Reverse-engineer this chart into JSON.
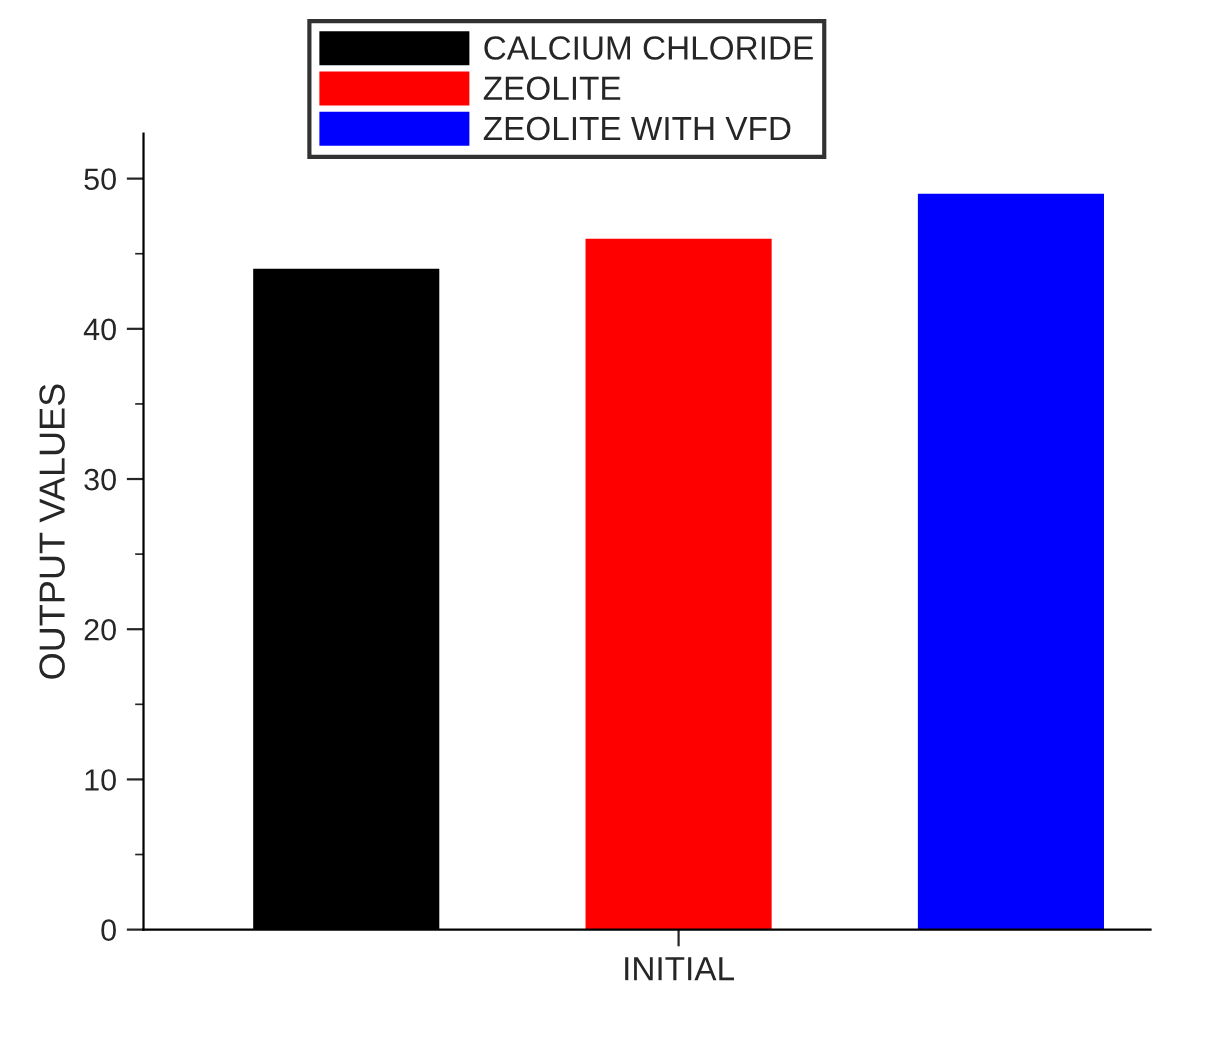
{
  "chart_data": {
    "type": "bar",
    "categories": [
      "INITIAL"
    ],
    "xlabel": null,
    "ylabel": "OUTPUT VALUES",
    "series": [
      {
        "name": "CALCIUM CHLORIDE",
        "color": "#000000",
        "values": [
          44
        ]
      },
      {
        "name": "ZEOLITE",
        "color": "#ff0000",
        "values": [
          46
        ]
      },
      {
        "name": "ZEOLITE WITH VFD",
        "color": "#0000ff",
        "values": [
          49
        ]
      }
    ],
    "ylim": [
      0,
      53
    ],
    "yticks": [
      0,
      10,
      20,
      30,
      40,
      50
    ],
    "grid": false,
    "legend": "top"
  }
}
